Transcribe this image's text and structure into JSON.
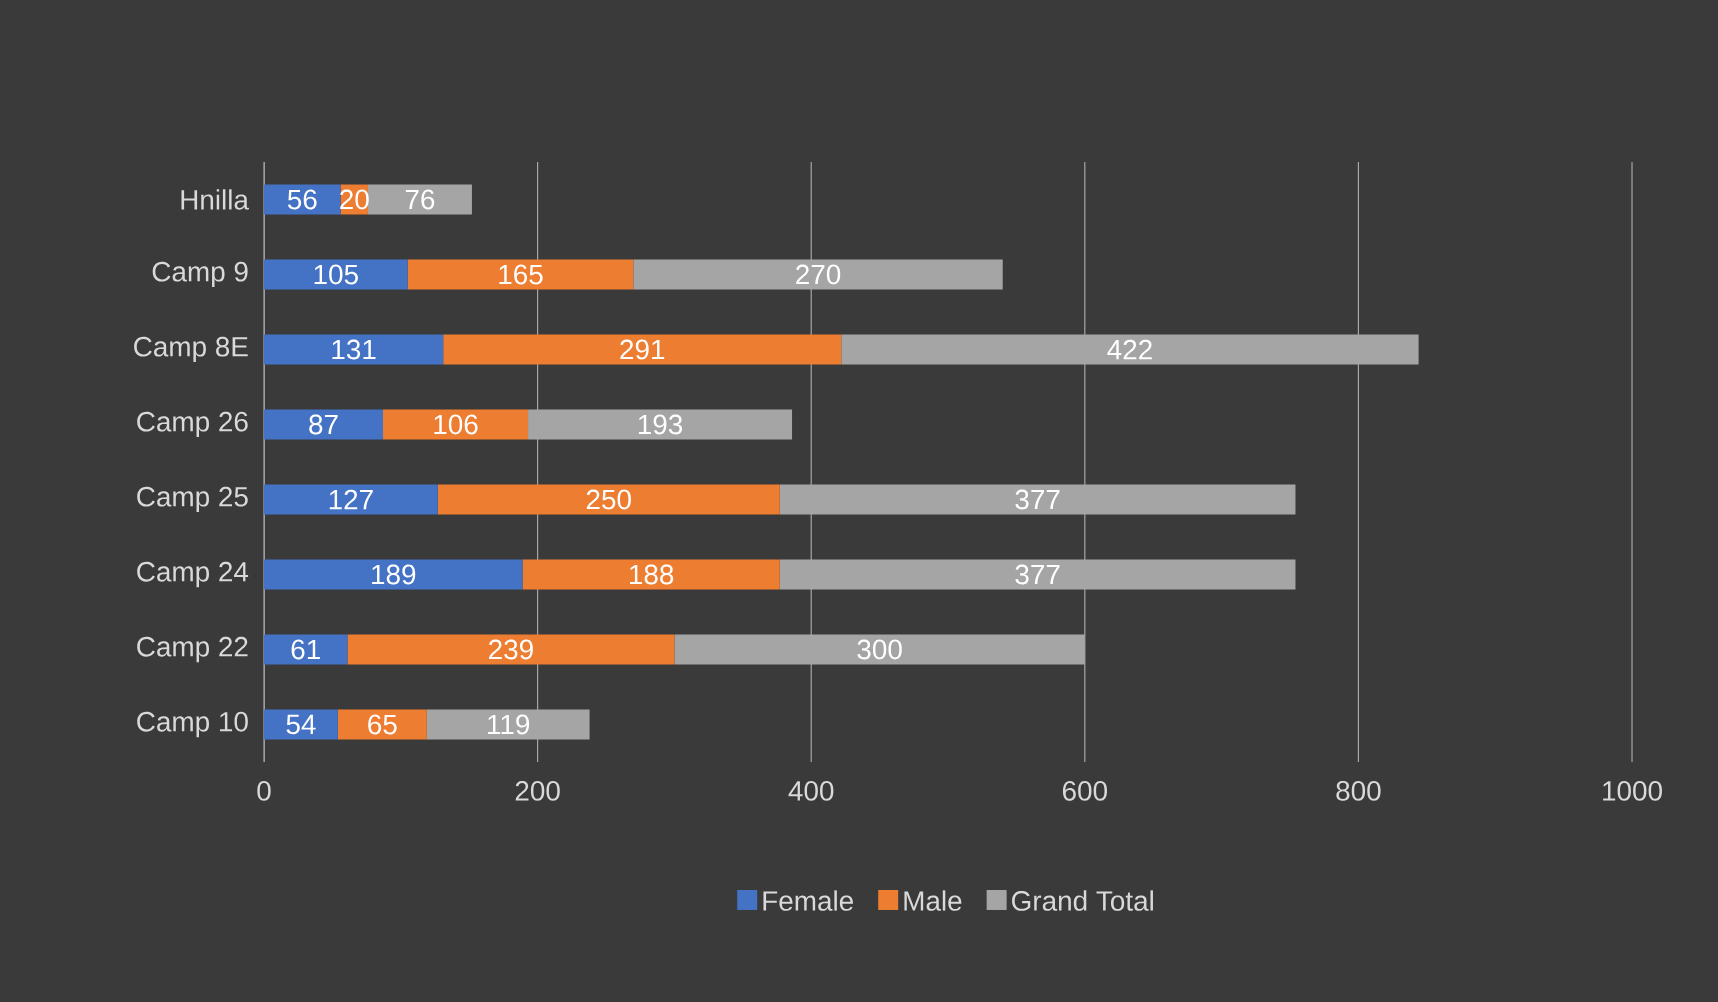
{
  "chart_data": {
    "type": "bar",
    "orientation": "horizontal",
    "stacked": true,
    "data_labels": true,
    "grid": "x",
    "legend": "bottom",
    "categories": [
      "Hnilla",
      "Camp 9",
      "Camp 8E",
      "Camp 26",
      "Camp 25",
      "Camp 24",
      "Camp 22",
      "Camp 10"
    ],
    "series": [
      {
        "name": "Female",
        "color": "#4472c4",
        "values": [
          56,
          105,
          131,
          87,
          127,
          189,
          61,
          54
        ]
      },
      {
        "name": "Male",
        "color": "#ed7d31",
        "values": [
          20,
          165,
          291,
          106,
          250,
          188,
          239,
          65
        ]
      },
      {
        "name": "Grand Total",
        "color": "#a5a5a5",
        "values": [
          76,
          270,
          422,
          193,
          377,
          377,
          300,
          119
        ]
      }
    ],
    "xlim": [
      0,
      1000
    ],
    "xticks": [
      0,
      200,
      400,
      600,
      800,
      1000
    ]
  }
}
